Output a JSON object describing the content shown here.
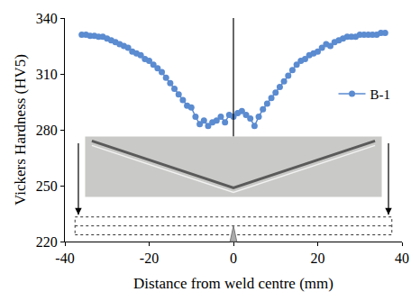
{
  "chart_data": {
    "type": "line",
    "x_label": "Distance from weld centre (mm)",
    "y_label": "Vickers Hardness (HV5)",
    "x": [
      -36,
      -35,
      -34,
      -33,
      -32,
      -31,
      -30,
      -29,
      -28,
      -27,
      -26,
      -25,
      -24,
      -23,
      -22,
      -21,
      -20,
      -19,
      -18,
      -17,
      -16,
      -15,
      -14,
      -13,
      -12,
      -11,
      -10,
      -9,
      -8,
      -7,
      -6,
      -5,
      -4,
      -3,
      -2,
      -1,
      0,
      1,
      2,
      3,
      4,
      5,
      6,
      7,
      8,
      9,
      10,
      11,
      12,
      13,
      14,
      15,
      16,
      17,
      18,
      19,
      20,
      21,
      22,
      23,
      24,
      25,
      26,
      27,
      28,
      29,
      30,
      31,
      32,
      33,
      34,
      35,
      36
    ],
    "series": [
      {
        "name": "B-1",
        "color": "#5b8bd0",
        "marker": "circle",
        "values": [
          331,
          331,
          330.5,
          330.5,
          330,
          330,
          329,
          328,
          327,
          326,
          325,
          324,
          322,
          321,
          320,
          318,
          317,
          315,
          313,
          311,
          308,
          305,
          302,
          299,
          296,
          293,
          292,
          287,
          283,
          285,
          282,
          284,
          285,
          287,
          284,
          288,
          287,
          289,
          290,
          288,
          286,
          282,
          287,
          291,
          294,
          297,
          300,
          303,
          306,
          309,
          312,
          315,
          317,
          318,
          320,
          321,
          322,
          324,
          326,
          325,
          327,
          328,
          329,
          330,
          330,
          330,
          331,
          331,
          331,
          331,
          331,
          332,
          332
        ]
      }
    ],
    "xlim": [
      -40,
      40
    ],
    "xticks": [
      -40,
      -20,
      0,
      20,
      40
    ],
    "ylim": [
      220,
      340
    ],
    "yticks": [
      220,
      250,
      280,
      310,
      340
    ],
    "grid": false,
    "legend": "right"
  }
}
